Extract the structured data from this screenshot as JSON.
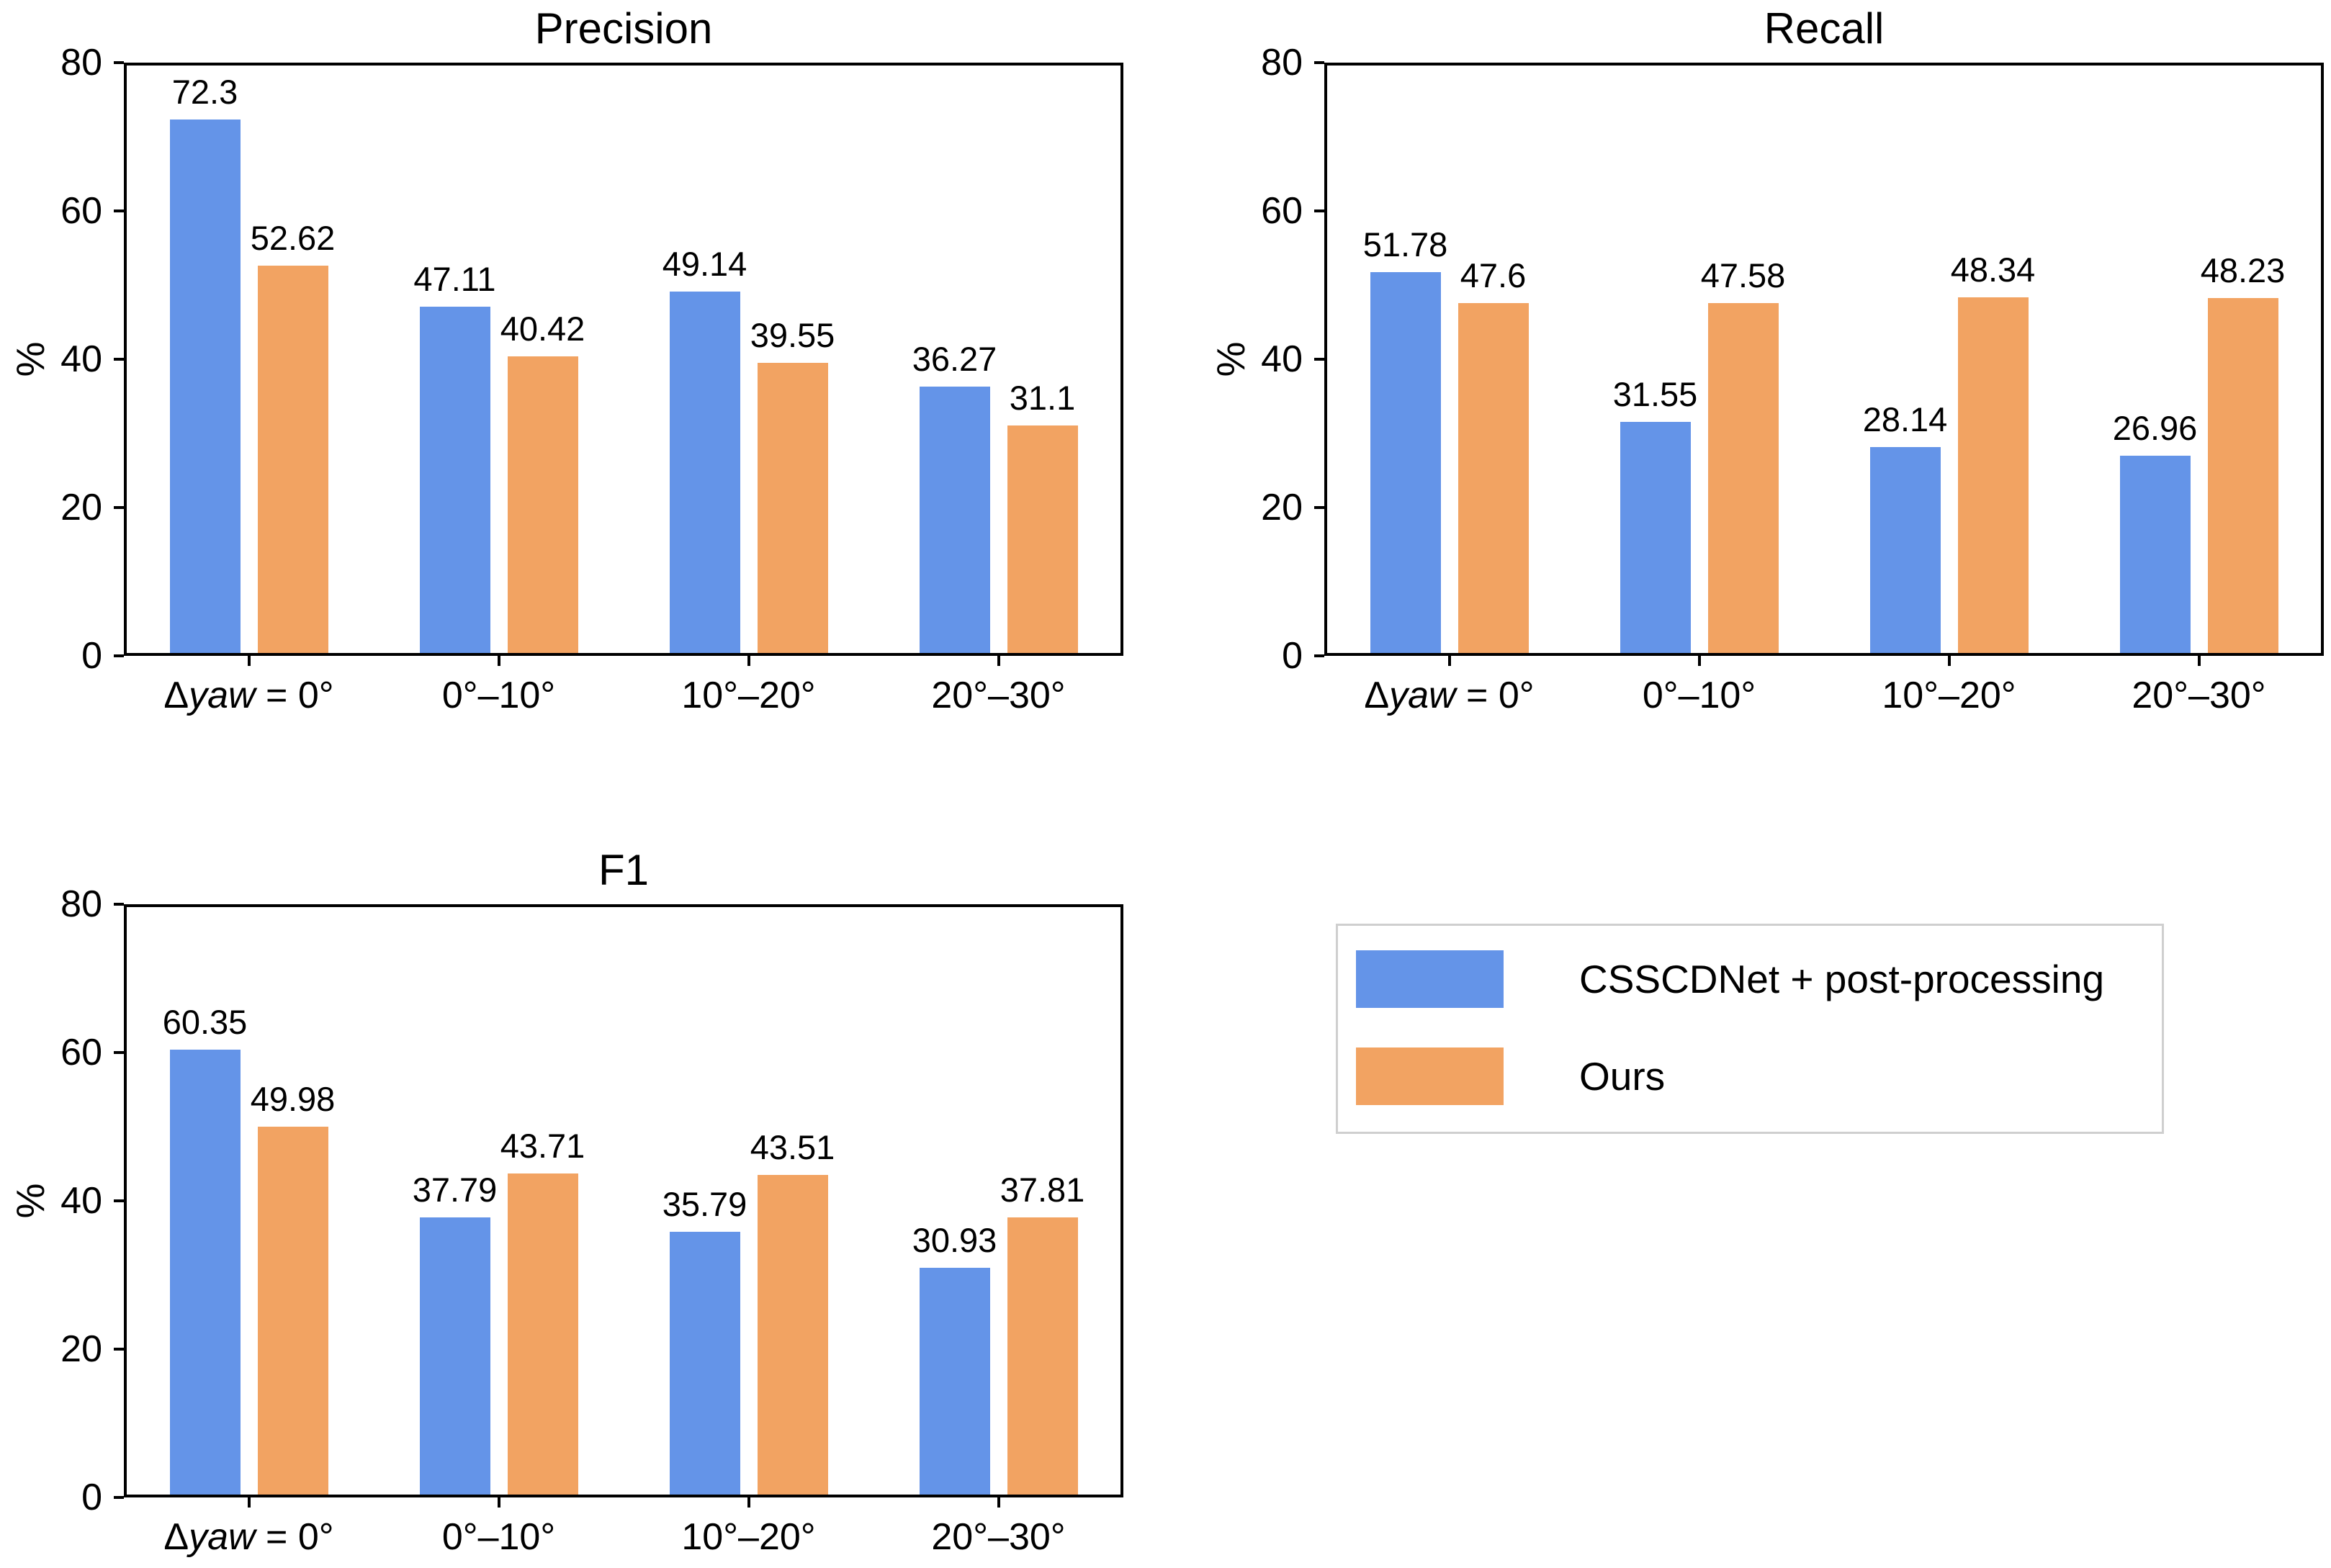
{
  "figure": {
    "background": "#ffffff",
    "text_color": "#000000",
    "spine_color": "#000000"
  },
  "chart_data": [
    {
      "type": "bar",
      "title": "Precision",
      "xlabel": "",
      "ylabel": "%",
      "ylim": [
        0,
        80
      ],
      "yticks": [
        0,
        20,
        40,
        60,
        80
      ],
      "grid": false,
      "categories": [
        "Δyaw = 0°",
        "0°–10°",
        "10°–20°",
        "20°–30°"
      ],
      "series": [
        {
          "name": "CSSCDNet + post-processing",
          "color": "#6494E8",
          "values": [
            72.3,
            47.11,
            49.14,
            36.27
          ]
        },
        {
          "name": "Ours",
          "color": "#F2A362",
          "values": [
            52.62,
            40.42,
            39.55,
            31.1
          ]
        }
      ]
    },
    {
      "type": "bar",
      "title": "Recall",
      "xlabel": "",
      "ylabel": "%",
      "ylim": [
        0,
        80
      ],
      "yticks": [
        0,
        20,
        40,
        60,
        80
      ],
      "grid": false,
      "categories": [
        "Δyaw = 0°",
        "0°–10°",
        "10°–20°",
        "20°–30°"
      ],
      "series": [
        {
          "name": "CSSCDNet + post-processing",
          "color": "#6494E8",
          "values": [
            51.78,
            31.55,
            28.14,
            26.96
          ]
        },
        {
          "name": "Ours",
          "color": "#F2A362",
          "values": [
            47.6,
            47.58,
            48.34,
            48.23
          ]
        }
      ]
    },
    {
      "type": "bar",
      "title": "F1",
      "xlabel": "",
      "ylabel": "%",
      "ylim": [
        0,
        80
      ],
      "yticks": [
        0,
        20,
        40,
        60,
        80
      ],
      "grid": false,
      "categories": [
        "Δyaw = 0°",
        "0°–10°",
        "10°–20°",
        "20°–30°"
      ],
      "series": [
        {
          "name": "CSSCDNet + post-processing",
          "color": "#6494E8",
          "values": [
            60.35,
            37.79,
            35.79,
            30.93
          ]
        },
        {
          "name": "Ours",
          "color": "#F2A362",
          "values": [
            49.98,
            43.71,
            43.51,
            37.81
          ]
        }
      ]
    }
  ],
  "legend": {
    "position": "bottom-right-quadrant",
    "items": [
      {
        "label": "CSSCDNet + post-processing",
        "color": "#6494E8"
      },
      {
        "label": "Ours",
        "color": "#F2A362"
      }
    ]
  }
}
